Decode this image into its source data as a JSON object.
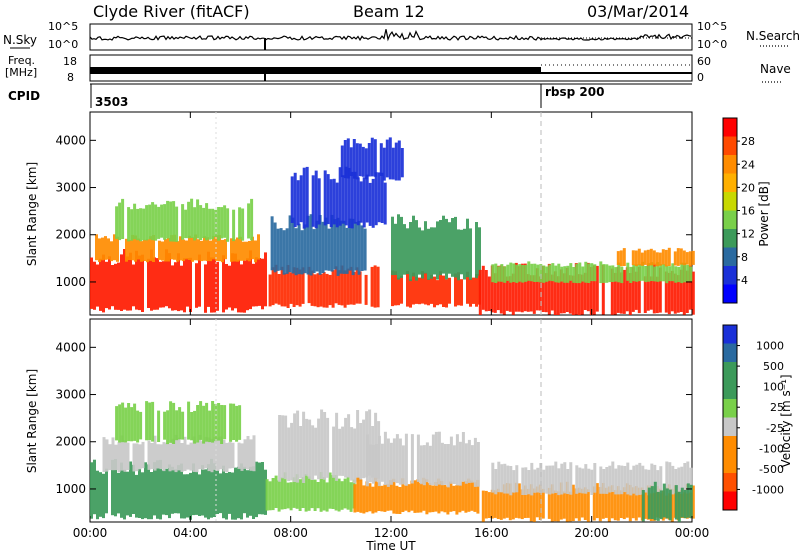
{
  "header": {
    "title": "Clyde River (fitACF)",
    "beam": "Beam 12",
    "date": "03/Mar/2014"
  },
  "strip_panels": {
    "nsky": {
      "label": "N.Sky",
      "ticks": [
        "10^5",
        "10^0"
      ]
    },
    "nsearch": {
      "label": "N.Search",
      "ticks": [
        "10^5",
        "10^0"
      ]
    },
    "freq": {
      "label_line1": "Freq.",
      "label_line2": "[MHz]",
      "ticks": [
        "18",
        "8"
      ]
    },
    "nave": {
      "label": "Nave",
      "ticks": [
        "60",
        "0"
      ]
    },
    "cpid": {
      "label": "CPID",
      "values": [
        "3503",
        "rbsp 200"
      ]
    }
  },
  "chart_data": [
    {
      "type": "heatmap",
      "name": "power-panel",
      "ylabel": "Slant Range [km]",
      "xlabel": "",
      "yticks": [
        1000,
        2000,
        3000,
        4000
      ],
      "ylim": [
        300,
        4600
      ],
      "colorbar": {
        "label": "Power [dB]",
        "ticks": [
          "28",
          "24",
          "20",
          "16",
          "12",
          "8",
          "4"
        ],
        "colors": [
          "#ff0000",
          "#ff4a00",
          "#ff8c00",
          "#ffb000",
          "#c8d800",
          "#79d04a",
          "#3c9a5a",
          "#2a6aa0",
          "#1a30d8",
          "#0000ff"
        ]
      },
      "bands": [
        {
          "t0": 0.0,
          "t1": 7.0,
          "r0": 420,
          "r1": 1450,
          "color": "#ff1a00"
        },
        {
          "t0": 0.2,
          "t1": 6.8,
          "r0": 1450,
          "r1": 1900,
          "color": "#ff8c00"
        },
        {
          "t0": 1.0,
          "t1": 6.5,
          "r0": 1900,
          "r1": 2600,
          "color": "#79d04a"
        },
        {
          "t0": 7.0,
          "t1": 11.5,
          "r0": 500,
          "r1": 1200,
          "color": "#ff2a00"
        },
        {
          "t0": 7.2,
          "t1": 11.0,
          "r0": 1200,
          "r1": 2200,
          "color": "#2a6aa0"
        },
        {
          "t0": 8.0,
          "t1": 11.8,
          "r0": 2200,
          "r1": 3200,
          "color": "#1a30d8"
        },
        {
          "t0": 10.0,
          "t1": 12.5,
          "r0": 3200,
          "r1": 3900,
          "color": "#1a30d8"
        },
        {
          "t0": 12.0,
          "t1": 15.5,
          "r0": 500,
          "r1": 1100,
          "color": "#ff2a00"
        },
        {
          "t0": 12.0,
          "t1": 15.5,
          "r0": 1100,
          "r1": 2200,
          "color": "#3c9a5a"
        },
        {
          "t0": 15.5,
          "t1": 24.0,
          "r0": 350,
          "r1": 1200,
          "color": "#ff1a00"
        },
        {
          "t0": 16.0,
          "t1": 24.0,
          "r0": 1000,
          "r1": 1350,
          "color": "#79d04a"
        },
        {
          "t0": 21.0,
          "t1": 24.0,
          "r0": 1350,
          "r1": 1650,
          "color": "#ff8c00"
        }
      ]
    },
    {
      "type": "heatmap",
      "name": "velocity-panel",
      "ylabel": "Slant Range [km]",
      "xlabel": "Time UT",
      "xticks": [
        "00:00",
        "04:00",
        "08:00",
        "12:00",
        "16:00",
        "20:00",
        "00:00"
      ],
      "yticks": [
        1000,
        2000,
        3000,
        4000
      ],
      "ylim": [
        300,
        4600
      ],
      "colorbar": {
        "label": "Velocity [m s⁻¹]",
        "ticks": [
          "1000",
          "500",
          "100",
          "25",
          "-25",
          "-100",
          "-500",
          "-1000"
        ],
        "colors": [
          "#1a30d8",
          "#2a6aa0",
          "#3c9a5a",
          "#3c9a5a",
          "#79d04a",
          "#c8c8c8",
          "#ff8c00",
          "#ff8c00",
          "#ff5000",
          "#ff0000"
        ]
      },
      "bands": [
        {
          "t0": 0.0,
          "t1": 7.0,
          "r0": 420,
          "r1": 1400,
          "color": "#3c9a5a"
        },
        {
          "t0": 0.5,
          "t1": 6.5,
          "r0": 1400,
          "r1": 2000,
          "color": "#c8c8c8"
        },
        {
          "t0": 1.0,
          "t1": 6.0,
          "r0": 2000,
          "r1": 2700,
          "color": "#79d04a"
        },
        {
          "t0": 7.0,
          "t1": 10.5,
          "r0": 550,
          "r1": 1200,
          "color": "#79d04a"
        },
        {
          "t0": 7.5,
          "t1": 11.5,
          "r0": 1200,
          "r1": 2400,
          "color": "#c8c8c8"
        },
        {
          "t0": 10.5,
          "t1": 15.5,
          "r0": 500,
          "r1": 1100,
          "color": "#ff8c00"
        },
        {
          "t0": 11.0,
          "t1": 15.5,
          "r0": 1100,
          "r1": 2000,
          "color": "#c8c8c8"
        },
        {
          "t0": 15.5,
          "t1": 24.0,
          "r0": 350,
          "r1": 1000,
          "color": "#ff8c00"
        },
        {
          "t0": 16.0,
          "t1": 24.0,
          "r0": 900,
          "r1": 1450,
          "color": "#c8c8c8"
        },
        {
          "t0": 22.0,
          "t1": 24.0,
          "r0": 350,
          "r1": 1000,
          "color": "#3c9a5a"
        }
      ]
    }
  ]
}
